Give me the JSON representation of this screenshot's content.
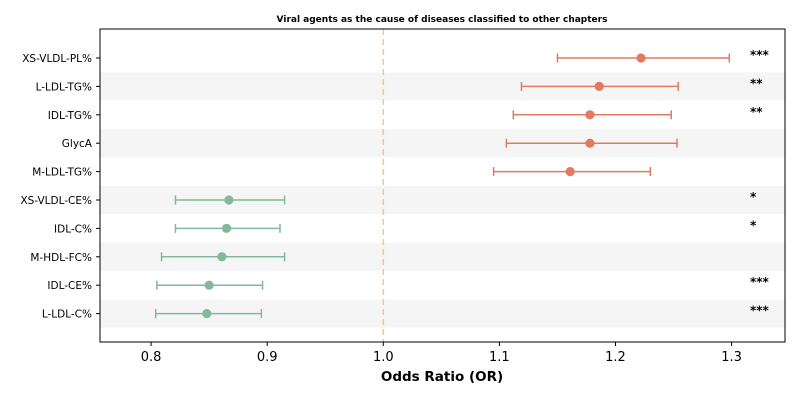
{
  "chart_data": {
    "type": "forest",
    "title": "Viral agents as the cause of diseases classified to other chapters",
    "xlabel": "Odds Ratio (OR)",
    "xlim": [
      0.756,
      1.346
    ],
    "xticks": [
      "0.8",
      "0.9",
      "1.0",
      "1.1",
      "1.2",
      "1.3"
    ],
    "reference_line": 1.0,
    "colors": {
      "positive": "#e07b5f",
      "negative": "#82b99a",
      "reference": "#f5c98a",
      "band": "#f5f5f5"
    },
    "rows": [
      {
        "label": "XS-VLDL-PL%",
        "or": 1.222,
        "lo": 1.15,
        "hi": 1.298,
        "sig": "***",
        "direction": "positive"
      },
      {
        "label": "L-LDL-TG%",
        "or": 1.186,
        "lo": 1.119,
        "hi": 1.254,
        "sig": "**",
        "direction": "positive"
      },
      {
        "label": "IDL-TG%",
        "or": 1.178,
        "lo": 1.112,
        "hi": 1.248,
        "sig": "**",
        "direction": "positive"
      },
      {
        "label": "GlycA",
        "or": 1.178,
        "lo": 1.106,
        "hi": 1.253,
        "sig": "",
        "direction": "positive"
      },
      {
        "label": "M-LDL-TG%",
        "or": 1.161,
        "lo": 1.095,
        "hi": 1.23,
        "sig": "",
        "direction": "positive"
      },
      {
        "label": "XS-VLDL-CE%",
        "or": 0.867,
        "lo": 0.821,
        "hi": 0.915,
        "sig": "*",
        "direction": "negative"
      },
      {
        "label": "IDL-C%",
        "or": 0.865,
        "lo": 0.821,
        "hi": 0.911,
        "sig": "*",
        "direction": "negative"
      },
      {
        "label": "M-HDL-FC%",
        "or": 0.861,
        "lo": 0.809,
        "hi": 0.915,
        "sig": "",
        "direction": "negative"
      },
      {
        "label": "IDL-CE%",
        "or": 0.85,
        "lo": 0.805,
        "hi": 0.896,
        "sig": "***",
        "direction": "negative"
      },
      {
        "label": "L-LDL-C%",
        "or": 0.848,
        "lo": 0.804,
        "hi": 0.895,
        "sig": "***",
        "direction": "negative"
      }
    ]
  }
}
